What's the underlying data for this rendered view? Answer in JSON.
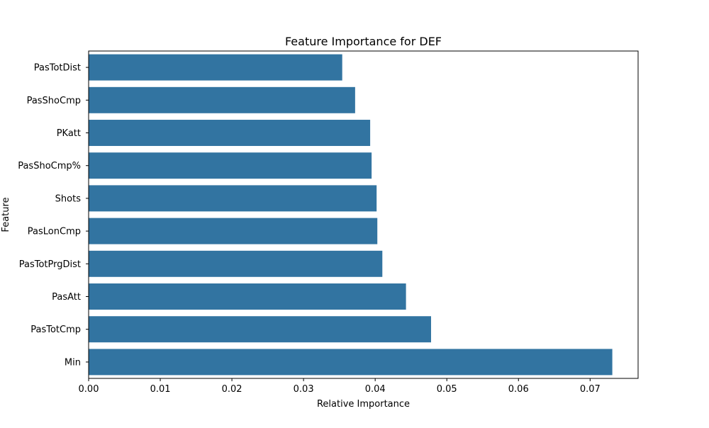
{
  "chart_data": {
    "type": "bar",
    "orientation": "horizontal",
    "title": "Feature Importance for DEF",
    "xlabel": "Relative Importance",
    "ylabel": "Feature",
    "categories": [
      "PasTotDist",
      "PasShoCmp",
      "PKatt",
      "PasShoCmp%",
      "Shots",
      "PasLonCmp",
      "PasTotPrgDist",
      "PasAtt",
      "PasTotCmp",
      "Min"
    ],
    "values": [
      0.0354,
      0.0372,
      0.0393,
      0.0395,
      0.0402,
      0.0403,
      0.041,
      0.0443,
      0.0478,
      0.0731
    ],
    "xlim": [
      0,
      0.0767
    ],
    "xticks": [
      0.0,
      0.01,
      0.02,
      0.03,
      0.04,
      0.05,
      0.06,
      0.07
    ],
    "xtick_labels": [
      "0.00",
      "0.01",
      "0.02",
      "0.03",
      "0.04",
      "0.05",
      "0.06",
      "0.07"
    ],
    "grid": false,
    "bar_color": "#3274a1"
  }
}
